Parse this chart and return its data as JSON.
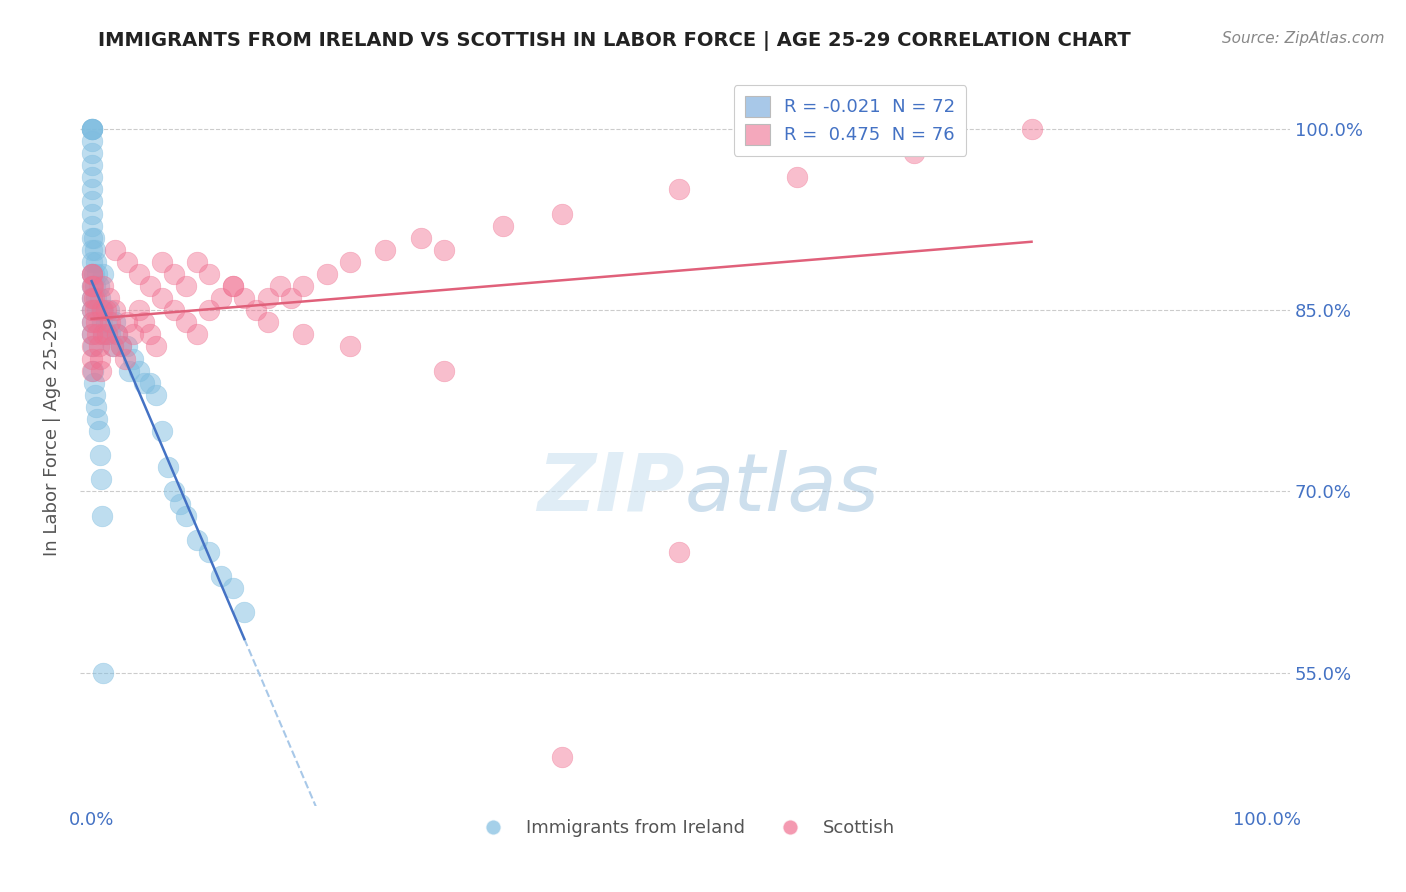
{
  "title": "IMMIGRANTS FROM IRELAND VS SCOTTISH IN LABOR FORCE | AGE 25-29 CORRELATION CHART",
  "source_text": "Source: ZipAtlas.com",
  "ylabel": "In Labor Force | Age 25-29",
  "x_tick_labels": [
    "0.0%",
    "100.0%"
  ],
  "y_tick_labels": [
    "55.0%",
    "70.0%",
    "85.0%",
    "100.0%"
  ],
  "y_tick_values": [
    0.55,
    0.7,
    0.85,
    1.0
  ],
  "watermark": "ZIPatlas",
  "ireland_color": "#7fbde0",
  "scottish_color": "#f07090",
  "ireland_legend_color": "#a8c8e8",
  "scottish_legend_color": "#f4a8bc",
  "ireland_line_color": "#4472c4",
  "scottish_line_color": "#e0607a",
  "ireland_dashed_color": "#a8c8e8",
  "scottish_dashed_color": "#f4a8bc",
  "legend_r_color": "#4472c4",
  "ireland_r": -0.021,
  "scottish_r": 0.475,
  "ireland_n": 72,
  "scottish_n": 76,
  "ireland_x": [
    0.0,
    0.0,
    0.0,
    0.0,
    0.0,
    0.0,
    0.0,
    0.0,
    0.0,
    0.0,
    0.0,
    0.0,
    0.0,
    0.0,
    0.0,
    0.0,
    0.0,
    0.0,
    0.0,
    0.0,
    0.002,
    0.002,
    0.003,
    0.003,
    0.004,
    0.004,
    0.005,
    0.005,
    0.006,
    0.007,
    0.008,
    0.009,
    0.01,
    0.01,
    0.01,
    0.012,
    0.013,
    0.015,
    0.016,
    0.018,
    0.02,
    0.022,
    0.025,
    0.03,
    0.032,
    0.035,
    0.04,
    0.045,
    0.05,
    0.055,
    0.06,
    0.065,
    0.07,
    0.075,
    0.08,
    0.09,
    0.1,
    0.11,
    0.12,
    0.13,
    0.0,
    0.001,
    0.001,
    0.002,
    0.003,
    0.004,
    0.005,
    0.006,
    0.007,
    0.008,
    0.009,
    0.01
  ],
  "ireland_y": [
    1.0,
    1.0,
    1.0,
    1.0,
    0.99,
    0.98,
    0.97,
    0.96,
    0.95,
    0.94,
    0.93,
    0.92,
    0.91,
    0.9,
    0.89,
    0.88,
    0.87,
    0.86,
    0.85,
    0.84,
    0.91,
    0.88,
    0.9,
    0.87,
    0.89,
    0.86,
    0.88,
    0.85,
    0.87,
    0.86,
    0.85,
    0.84,
    0.88,
    0.85,
    0.83,
    0.84,
    0.83,
    0.85,
    0.83,
    0.82,
    0.84,
    0.83,
    0.82,
    0.82,
    0.8,
    0.81,
    0.8,
    0.79,
    0.79,
    0.78,
    0.75,
    0.72,
    0.7,
    0.69,
    0.68,
    0.66,
    0.65,
    0.63,
    0.62,
    0.6,
    0.83,
    0.82,
    0.8,
    0.79,
    0.78,
    0.77,
    0.76,
    0.75,
    0.73,
    0.71,
    0.68,
    0.55
  ],
  "scottish_x": [
    0.0,
    0.0,
    0.0,
    0.0,
    0.0,
    0.0,
    0.0,
    0.0,
    0.0,
    0.0,
    0.001,
    0.002,
    0.003,
    0.004,
    0.005,
    0.006,
    0.007,
    0.008,
    0.009,
    0.01,
    0.01,
    0.012,
    0.013,
    0.015,
    0.016,
    0.018,
    0.02,
    0.022,
    0.025,
    0.028,
    0.03,
    0.035,
    0.04,
    0.045,
    0.05,
    0.055,
    0.06,
    0.07,
    0.08,
    0.09,
    0.1,
    0.11,
    0.12,
    0.13,
    0.14,
    0.15,
    0.16,
    0.17,
    0.18,
    0.2,
    0.22,
    0.25,
    0.28,
    0.3,
    0.35,
    0.4,
    0.5,
    0.6,
    0.7,
    0.8,
    0.02,
    0.03,
    0.04,
    0.05,
    0.06,
    0.07,
    0.08,
    0.09,
    0.1,
    0.12,
    0.15,
    0.18,
    0.22,
    0.3,
    0.4,
    0.5
  ],
  "scottish_y": [
    0.88,
    0.87,
    0.86,
    0.85,
    0.84,
    0.83,
    0.82,
    0.81,
    0.8,
    0.88,
    0.87,
    0.86,
    0.85,
    0.84,
    0.83,
    0.82,
    0.81,
    0.8,
    0.85,
    0.83,
    0.87,
    0.85,
    0.83,
    0.86,
    0.84,
    0.82,
    0.85,
    0.83,
    0.82,
    0.81,
    0.84,
    0.83,
    0.85,
    0.84,
    0.83,
    0.82,
    0.86,
    0.85,
    0.84,
    0.83,
    0.85,
    0.86,
    0.87,
    0.86,
    0.85,
    0.86,
    0.87,
    0.86,
    0.87,
    0.88,
    0.89,
    0.9,
    0.91,
    0.9,
    0.92,
    0.93,
    0.95,
    0.96,
    0.98,
    1.0,
    0.9,
    0.89,
    0.88,
    0.87,
    0.89,
    0.88,
    0.87,
    0.89,
    0.88,
    0.87,
    0.84,
    0.83,
    0.82,
    0.8,
    0.48,
    0.65
  ],
  "xlim": [
    -0.01,
    1.02
  ],
  "ylim": [
    0.44,
    1.05
  ]
}
